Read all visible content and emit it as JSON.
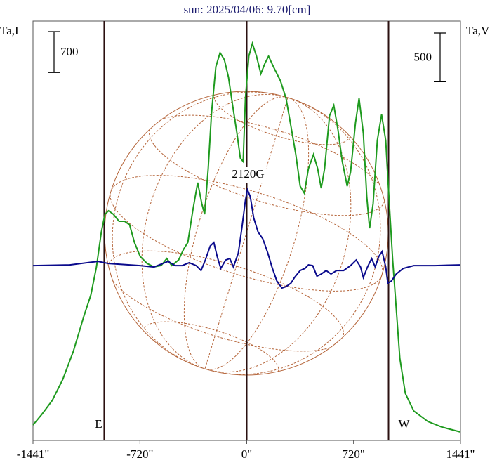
{
  "chart_data": {
    "type": "line",
    "title": "sun: 2025/04/06: 9.70[cm]",
    "ylabel": "Ta,I",
    "y2label": "Ta,V",
    "xlim": [
      -1441,
      1441
    ],
    "xticks": [
      {
        "value": -1441,
        "label": "-1441\""
      },
      {
        "value": -720,
        "label": "-720\""
      },
      {
        "value": 0,
        "label": "0\""
      },
      {
        "value": 720,
        "label": "720\""
      },
      {
        "value": 1441,
        "label": "1441\""
      }
    ],
    "ylim": [
      0,
      7164
    ],
    "y2lim": [
      -1800,
      2500
    ],
    "scale_bars": [
      {
        "value": 700,
        "axis": "y"
      },
      {
        "value": 500,
        "axis": "y2"
      }
    ],
    "limbs": [
      {
        "x": -961,
        "label": "E"
      },
      {
        "x": 956,
        "label": "W"
      }
    ],
    "annotation": {
      "text": "2120G",
      "x": 0
    },
    "series": [
      {
        "name": "I",
        "color": "#1e9a1e",
        "axis": "y",
        "x": [
          -1441,
          -1382,
          -1311,
          -1240,
          -1169,
          -1098,
          -1051,
          -1013,
          -980,
          -956,
          -932,
          -899,
          -861,
          -823,
          -790,
          -757,
          -719,
          -672,
          -625,
          -577,
          -539,
          -506,
          -459,
          -426,
          -397,
          -364,
          -331,
          -303,
          -284,
          -260,
          -237,
          -208,
          -180,
          -151,
          -123,
          -95,
          -66,
          -43,
          -24,
          -9,
          14,
          38,
          66,
          95,
          123,
          147,
          180,
          227,
          265,
          298,
          331,
          360,
          388,
          416,
          450,
          478,
          502,
          525,
          558,
          587,
          615,
          644,
          677,
          700,
          733,
          757,
          786,
          809,
          828,
          852,
          880,
          909,
          937,
          961,
          984,
          1008,
          1032,
          1069,
          1126,
          1221,
          1316,
          1441
        ],
        "values": [
          264,
          444,
          684,
          1044,
          1524,
          2124,
          2484,
          2964,
          3564,
          3864,
          3924,
          3864,
          3744,
          3744,
          3684,
          3384,
          3144,
          3024,
          2964,
          2988,
          3108,
          2988,
          3084,
          3264,
          3384,
          3924,
          4404,
          4044,
          3864,
          4644,
          5604,
          6384,
          6624,
          6504,
          6204,
          5724,
          5244,
          4824,
          4764,
          5844,
          6564,
          6780,
          6564,
          6264,
          6444,
          6564,
          6384,
          6144,
          5844,
          5364,
          4884,
          4344,
          4224,
          4644,
          4884,
          4644,
          4308,
          4644,
          5544,
          5724,
          5304,
          4764,
          4344,
          4584,
          5424,
          5844,
          5244,
          4164,
          3624,
          4044,
          5124,
          5568,
          5124,
          4044,
          3084,
          2244,
          1404,
          804,
          504,
          324,
          228,
          144
        ]
      },
      {
        "name": "V",
        "color": "#0a0a8c",
        "axis": "y2",
        "x": [
          -1441,
          -1193,
          -1003,
          -932,
          -861,
          -719,
          -625,
          -530,
          -483,
          -435,
          -388,
          -341,
          -308,
          -279,
          -246,
          -222,
          -199,
          -175,
          -142,
          -114,
          -90,
          -57,
          -33,
          -9,
          5,
          24,
          47,
          76,
          109,
          142,
          170,
          203,
          237,
          265,
          298,
          322,
          360,
          393,
          416,
          445,
          473,
          502,
          535,
          568,
          606,
          653,
          700,
          738,
          767,
          786,
          814,
          842,
          866,
          890,
          913,
          937,
          951,
          975,
          1008,
          1055,
          1126,
          1268,
          1441
        ],
        "values": [
          -7,
          0,
          36,
          14,
          7,
          -7,
          -22,
          36,
          -7,
          -7,
          22,
          -7,
          -58,
          50,
          194,
          230,
          86,
          -36,
          50,
          65,
          -22,
          122,
          374,
          662,
          770,
          698,
          482,
          338,
          266,
          122,
          -22,
          -166,
          -238,
          -223,
          -187,
          -130,
          -58,
          -36,
          0,
          -7,
          -115,
          -94,
          -58,
          -94,
          -58,
          -58,
          -7,
          50,
          -22,
          -130,
          -22,
          65,
          -22,
          86,
          137,
          -22,
          -187,
          -166,
          -94,
          -36,
          -7,
          -7,
          0
        ]
      }
    ]
  }
}
